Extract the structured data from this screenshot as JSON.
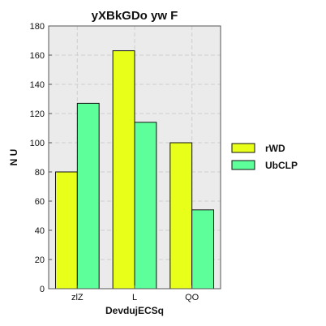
{
  "chart_data": {
    "type": "bar",
    "title": "yXBkGDo yw F",
    "xlabel": "DevdujECSq",
    "ylabel": "N U",
    "categories": [
      "zlZ",
      "L",
      "QO"
    ],
    "series": [
      {
        "name": "rWD",
        "values": [
          80,
          163,
          100
        ],
        "color": "#e8ff1a"
      },
      {
        "name": "UbCLP",
        "values": [
          127,
          114,
          54
        ],
        "color": "#5cff9a"
      }
    ],
    "ylim": [
      0,
      180
    ],
    "yticks": [
      0,
      20,
      40,
      60,
      80,
      100,
      120,
      140,
      160,
      180
    ],
    "grid": true,
    "plot_background": "#ebebeb",
    "legend_position": "right"
  }
}
